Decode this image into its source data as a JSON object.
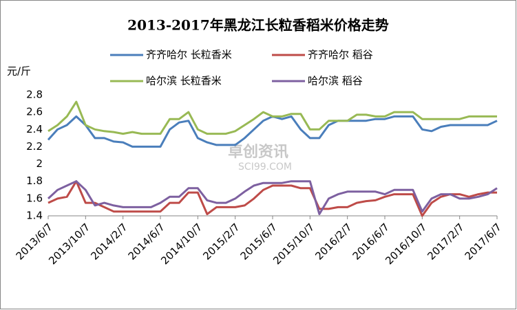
{
  "chart_data": {
    "type": "line",
    "title": "2013-2017年黑龙江长粒香稻米价格走势",
    "y_label": "元/斤",
    "watermark_name": "卓创资讯",
    "watermark_site": "SCI99.COM",
    "categories": [
      "2013/6/7",
      null,
      null,
      null,
      "2013/10/7",
      null,
      null,
      null,
      "2014/2/7",
      null,
      null,
      null,
      "2014/6/7",
      null,
      null,
      null,
      "2014/10/7",
      null,
      null,
      null,
      "2015/2/7",
      null,
      null,
      null,
      "2015/6/7",
      null,
      null,
      null,
      "2015/10/7",
      null,
      null,
      null,
      "2016/2/7",
      null,
      null,
      null,
      "2016/6/7",
      null,
      null,
      null,
      "2016/10/7",
      null,
      null,
      null,
      "2017/2/7",
      null,
      null,
      null,
      "2017/6/7"
    ],
    "series": [
      {
        "name": "齐齐哈尔 长粒香米",
        "color": "#4a7ebb",
        "values": [
          2.28,
          2.4,
          2.45,
          2.55,
          2.45,
          2.3,
          2.3,
          2.26,
          2.25,
          2.2,
          2.2,
          2.2,
          2.2,
          2.4,
          2.48,
          2.5,
          2.3,
          2.25,
          2.22,
          2.22,
          2.22,
          2.3,
          2.4,
          2.5,
          2.55,
          2.52,
          2.55,
          2.4,
          2.3,
          2.3,
          2.45,
          2.5,
          2.5,
          2.5,
          2.5,
          2.52,
          2.52,
          2.55,
          2.55,
          2.55,
          2.4,
          2.38,
          2.43,
          2.45,
          2.45,
          2.45,
          2.45,
          2.45,
          2.5
        ]
      },
      {
        "name": "齐齐哈尔 稻谷",
        "color": "#be4b48",
        "values": [
          1.55,
          1.6,
          1.62,
          1.8,
          1.55,
          1.55,
          1.5,
          1.45,
          1.45,
          1.45,
          1.45,
          1.45,
          1.45,
          1.55,
          1.55,
          1.67,
          1.67,
          1.42,
          1.5,
          1.5,
          1.5,
          1.52,
          1.6,
          1.7,
          1.75,
          1.75,
          1.75,
          1.72,
          1.72,
          1.48,
          1.48,
          1.5,
          1.5,
          1.55,
          1.57,
          1.58,
          1.62,
          1.65,
          1.65,
          1.65,
          1.4,
          1.55,
          1.62,
          1.65,
          1.65,
          1.62,
          1.65,
          1.67,
          1.67
        ]
      },
      {
        "name": "哈尔滨 长粒香米",
        "color": "#98b954",
        "values": [
          2.38,
          2.45,
          2.55,
          2.72,
          2.45,
          2.4,
          2.38,
          2.37,
          2.35,
          2.37,
          2.35,
          2.35,
          2.35,
          2.52,
          2.52,
          2.6,
          2.4,
          2.35,
          2.35,
          2.35,
          2.38,
          2.45,
          2.52,
          2.6,
          2.55,
          2.55,
          2.58,
          2.58,
          2.4,
          2.4,
          2.5,
          2.5,
          2.5,
          2.57,
          2.57,
          2.55,
          2.55,
          2.6,
          2.6,
          2.6,
          2.52,
          2.52,
          2.52,
          2.52,
          2.52,
          2.55,
          2.55,
          2.55,
          2.55
        ]
      },
      {
        "name": "哈尔滨 稻谷",
        "color": "#7d60a0",
        "values": [
          1.6,
          1.7,
          1.75,
          1.8,
          1.7,
          1.52,
          1.55,
          1.52,
          1.5,
          1.5,
          1.5,
          1.5,
          1.55,
          1.62,
          1.62,
          1.72,
          1.72,
          1.58,
          1.55,
          1.55,
          1.6,
          1.68,
          1.75,
          1.78,
          1.78,
          1.78,
          1.8,
          1.8,
          1.8,
          1.42,
          1.6,
          1.65,
          1.68,
          1.68,
          1.68,
          1.68,
          1.65,
          1.7,
          1.7,
          1.7,
          1.45,
          1.6,
          1.65,
          1.65,
          1.6,
          1.6,
          1.62,
          1.65,
          1.72
        ]
      }
    ],
    "ylim": [
      1.4,
      2.8
    ],
    "yticks": [
      1.4,
      1.6,
      1.8,
      2,
      2.2,
      2.4,
      2.6,
      2.8
    ],
    "grid": false
  }
}
